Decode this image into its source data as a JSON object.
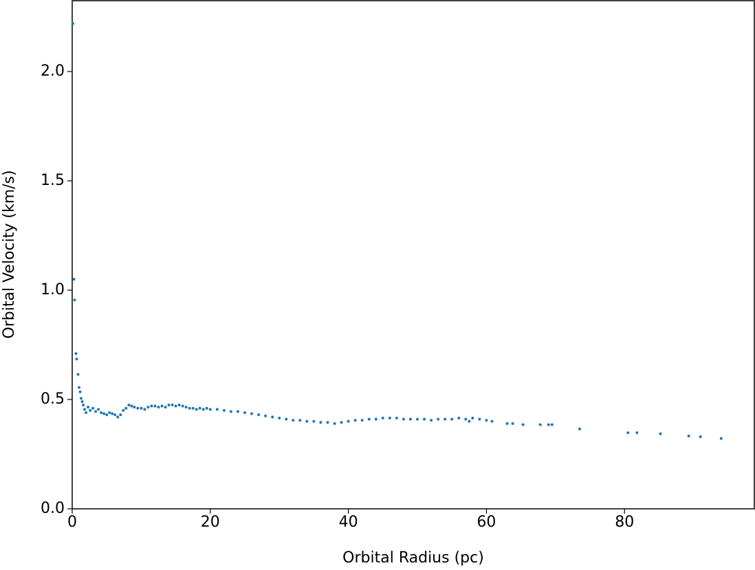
{
  "chart_data": {
    "type": "scatter",
    "xlabel": "Orbital Radius (pc)",
    "ylabel": "Orbital Velocity (km/s)",
    "color": "#1f77b4",
    "xlim": [
      0,
      98.8
    ],
    "ylim": [
      0,
      2.324
    ],
    "xticks": [
      0,
      20,
      40,
      60,
      80
    ],
    "yticks": [
      {
        "value": 0,
        "label": "0.0"
      },
      {
        "value": 0.5,
        "label": "0.5"
      },
      {
        "value": 1,
        "label": "1.0"
      },
      {
        "value": 1.5,
        "label": "1.5"
      },
      {
        "value": 2,
        "label": "2.0"
      }
    ],
    "grid": false,
    "x": [
      0.1,
      0.25,
      0.35,
      0.55,
      0.65,
      0.85,
      1.0,
      1.15,
      1.3,
      1.45,
      1.6,
      1.8,
      2.0,
      2.3,
      2.6,
      3.0,
      3.4,
      3.8,
      4.2,
      4.6,
      5.0,
      5.4,
      5.8,
      6.2,
      6.6,
      7.0,
      7.4,
      7.8,
      8.2,
      8.6,
      9.0,
      9.5,
      10,
      10.5,
      11,
      11.5,
      12,
      12.5,
      13,
      13.5,
      14,
      14.5,
      15,
      15.5,
      16,
      16.5,
      17,
      17.5,
      18,
      18.5,
      19,
      19.5,
      20,
      21,
      22,
      23,
      24,
      25,
      26,
      27,
      28,
      29,
      30,
      31,
      32,
      33,
      34,
      35,
      36,
      37,
      38,
      39,
      40,
      41,
      42,
      43,
      44,
      45,
      46,
      47,
      48,
      49,
      50,
      51,
      52,
      53,
      54,
      55,
      56,
      57,
      57.5,
      58,
      59,
      60,
      60.8,
      63,
      63.8,
      65.3,
      67.8,
      69,
      69.5,
      73.5,
      80.5,
      81.8,
      85.2,
      89.3,
      91,
      94
    ],
    "values": [
      2.22,
      1.05,
      0.955,
      0.71,
      0.685,
      0.615,
      0.555,
      0.535,
      0.505,
      0.49,
      0.475,
      0.455,
      0.44,
      0.465,
      0.45,
      0.46,
      0.445,
      0.455,
      0.44,
      0.435,
      0.43,
      0.44,
      0.435,
      0.43,
      0.42,
      0.43,
      0.45,
      0.46,
      0.475,
      0.47,
      0.465,
      0.46,
      0.46,
      0.455,
      0.465,
      0.47,
      0.47,
      0.465,
      0.47,
      0.465,
      0.475,
      0.475,
      0.47,
      0.475,
      0.47,
      0.465,
      0.46,
      0.46,
      0.455,
      0.46,
      0.455,
      0.46,
      0.455,
      0.455,
      0.45,
      0.445,
      0.445,
      0.44,
      0.435,
      0.43,
      0.425,
      0.42,
      0.415,
      0.41,
      0.405,
      0.405,
      0.4,
      0.4,
      0.395,
      0.395,
      0.39,
      0.395,
      0.4,
      0.405,
      0.405,
      0.41,
      0.41,
      0.415,
      0.415,
      0.415,
      0.41,
      0.41,
      0.41,
      0.41,
      0.405,
      0.41,
      0.41,
      0.41,
      0.415,
      0.41,
      0.4,
      0.415,
      0.41,
      0.405,
      0.4,
      0.39,
      0.39,
      0.385,
      0.385,
      0.385,
      0.385,
      0.365,
      0.348,
      0.348,
      0.343,
      0.333,
      0.33,
      0.322
    ]
  }
}
